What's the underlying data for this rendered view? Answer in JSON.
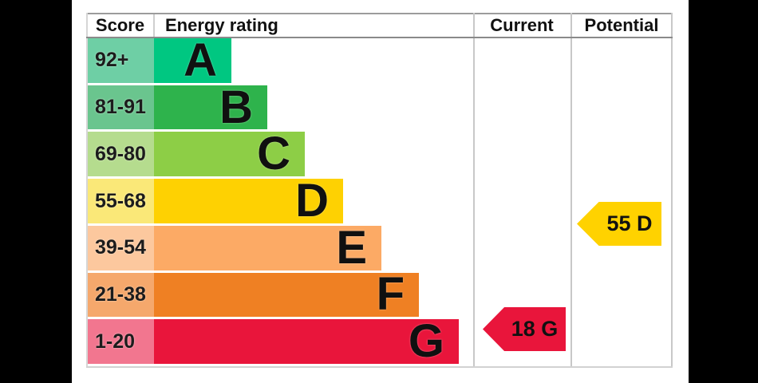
{
  "header": {
    "score": "Score",
    "energy_rating": "Energy rating",
    "current": "Current",
    "potential": "Potential"
  },
  "bands": [
    {
      "score_range": "92+",
      "letter": "A",
      "color": "#00c781",
      "tint": "#6ecfa5"
    },
    {
      "score_range": "81-91",
      "letter": "B",
      "color": "#2eb34c",
      "tint": "#6ac58e"
    },
    {
      "score_range": "69-80",
      "letter": "C",
      "color": "#8dce46",
      "tint": "#b5dc8e"
    },
    {
      "score_range": "55-68",
      "letter": "D",
      "color": "#fed102",
      "tint": "#fae878"
    },
    {
      "score_range": "39-54",
      "letter": "E",
      "color": "#fcaa65",
      "tint": "#fcc89e"
    },
    {
      "score_range": "21-38",
      "letter": "F",
      "color": "#ef8023",
      "tint": "#f5a86c"
    },
    {
      "score_range": "1-20",
      "letter": "G",
      "color": "#e9153b",
      "tint": "#f2768f"
    }
  ],
  "current": {
    "label": "18 G",
    "value": 18,
    "band": "G",
    "color": "#e9153b",
    "band_index": 6
  },
  "potential": {
    "label": "55 D",
    "value": 55,
    "band": "D",
    "color": "#ffd200",
    "band_index": 3
  },
  "chart_data": {
    "type": "bar",
    "title": "EPC energy efficiency rating chart",
    "columns": [
      "Score",
      "Energy rating",
      "Current",
      "Potential"
    ],
    "categories": [
      "A",
      "B",
      "C",
      "D",
      "E",
      "F",
      "G"
    ],
    "score_ranges": [
      "92+",
      "81-91",
      "69-80",
      "55-68",
      "39-54",
      "21-38",
      "1-20"
    ],
    "bar_lengths_relative": [
      1,
      2,
      3,
      4,
      5,
      6,
      7
    ],
    "band_colors": [
      "#00c781",
      "#2eb34c",
      "#8dce46",
      "#fed102",
      "#fcaa65",
      "#ef8023",
      "#e9153b"
    ],
    "current_rating": {
      "score": 18,
      "band": "G"
    },
    "potential_rating": {
      "score": 55,
      "band": "D"
    },
    "legend_position": "none",
    "grid": false
  }
}
